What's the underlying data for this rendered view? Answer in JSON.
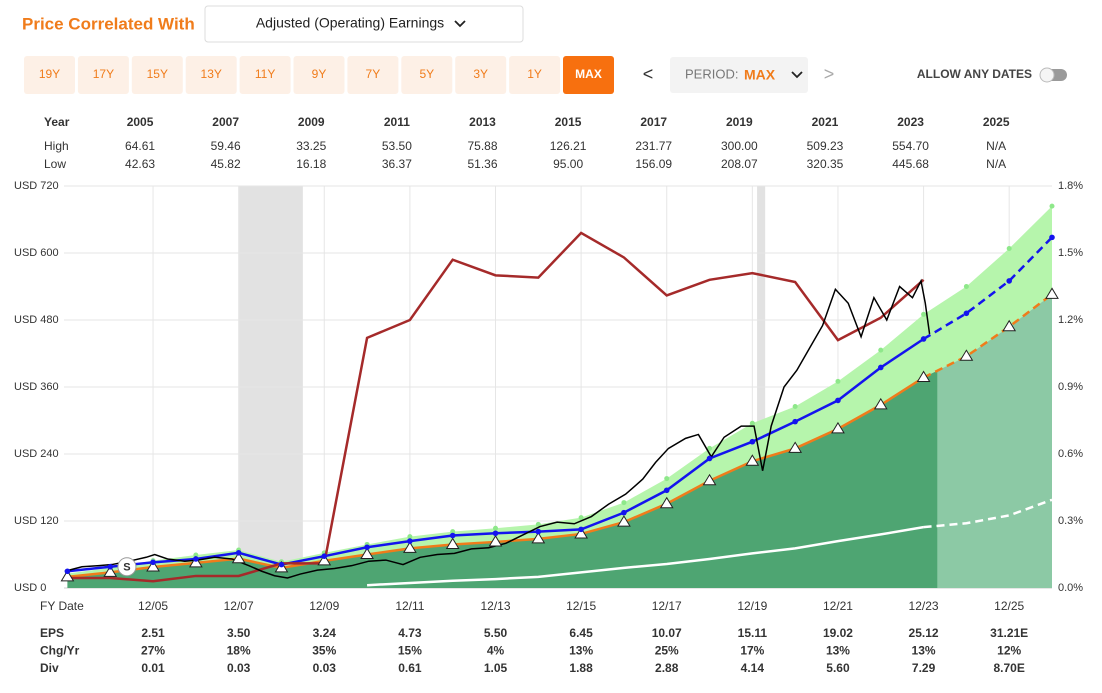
{
  "controls": {
    "title": "Price Correlated With",
    "dropdown": "Adjusted (Operating) Earnings",
    "periods": [
      "19Y",
      "17Y",
      "15Y",
      "13Y",
      "11Y",
      "9Y",
      "7Y",
      "5Y",
      "3Y",
      "1Y",
      "MAX"
    ],
    "active_period": 10,
    "prev": "<",
    "next": ">",
    "period_label": "PERIOD:",
    "period_value": "MAX",
    "allow_any_dates": "ALLOW ANY DATES"
  },
  "year_table": {
    "row_labels": [
      "Year",
      "High",
      "Low"
    ],
    "years": [
      "2005",
      "2007",
      "2009",
      "2011",
      "2013",
      "2015",
      "2017",
      "2019",
      "2021",
      "2023",
      "2025"
    ],
    "high": [
      "64.61",
      "59.46",
      "33.25",
      "53.50",
      "75.88",
      "126.21",
      "231.77",
      "300.00",
      "509.23",
      "554.70",
      "N/A"
    ],
    "low": [
      "42.63",
      "45.82",
      "16.18",
      "36.37",
      "51.36",
      "95.00",
      "156.09",
      "208.07",
      "320.35",
      "445.68",
      "N/A"
    ]
  },
  "chart_data": {
    "type": "line",
    "x": [
      2003.96,
      2004.96,
      2005.96,
      2006.96,
      2007.96,
      2008.96,
      2009.96,
      2010.96,
      2011.96,
      2012.96,
      2013.96,
      2014.96,
      2015.96,
      2016.96,
      2017.96,
      2018.96,
      2019.96,
      2020.96,
      2021.96,
      2022.96,
      2023.96,
      2024.96,
      2025.96,
      2026.96
    ],
    "xlim": [
      2003.88,
      2026.96
    ],
    "xticks": [
      {
        "value": 2005.96,
        "label": "12/05"
      },
      {
        "value": 2007.96,
        "label": "12/07"
      },
      {
        "value": 2009.96,
        "label": "12/09"
      },
      {
        "value": 2011.96,
        "label": "12/11"
      },
      {
        "value": 2013.96,
        "label": "12/13"
      },
      {
        "value": 2015.96,
        "label": "12/15"
      },
      {
        "value": 2017.96,
        "label": "12/17"
      },
      {
        "value": 2019.96,
        "label": "12/19"
      },
      {
        "value": 2021.96,
        "label": "12/21"
      },
      {
        "value": 2023.96,
        "label": "12/23"
      },
      {
        "value": 2025.96,
        "label": "12/25"
      }
    ],
    "xlabel": "FY Date",
    "ylim": [
      0,
      720
    ],
    "yticks": [
      {
        "value": 0,
        "label": "USD 0"
      },
      {
        "value": 120,
        "label": "USD 120"
      },
      {
        "value": 240,
        "label": "USD 240"
      },
      {
        "value": 360,
        "label": "USD 360"
      },
      {
        "value": 480,
        "label": "USD 480"
      },
      {
        "value": 600,
        "label": "USD 600"
      },
      {
        "value": 720,
        "label": "USD 720"
      }
    ],
    "y2lim": [
      0,
      1.8
    ],
    "y2ticks": [
      {
        "value": 0,
        "label": "0.0%"
      },
      {
        "value": 0.3,
        "label": "0.3%"
      },
      {
        "value": 0.6,
        "label": "0.6%"
      },
      {
        "value": 0.9,
        "label": "0.9%"
      },
      {
        "value": 1.2,
        "label": "1.2%"
      },
      {
        "value": 1.5,
        "label": "1.5%"
      },
      {
        "value": 1.8,
        "label": "1.8%"
      }
    ],
    "grid": true,
    "dashed_after": 2023.96,
    "dark_area_until": 2024.28,
    "dark_area_color": "#4ea572",
    "future_area_color": "#8cc9a5",
    "band": {
      "color": "#b6f5ac",
      "dot_color": "#8ee88a",
      "values": [
        26,
        36,
        49,
        59,
        68,
        47,
        63,
        78,
        92,
        101,
        107,
        114,
        126,
        153,
        196,
        250,
        295,
        325,
        370,
        426,
        490,
        540,
        608,
        684
      ]
    },
    "series": [
      {
        "color": "#f07c1b",
        "marker": "triangle",
        "dashed_forecast": true,
        "values": [
          20,
          28,
          37.7,
          45,
          52.5,
          36,
          48.6,
          60,
          71,
          78,
          82.5,
          88,
          96.8,
          118,
          151,
          192,
          227,
          250,
          285,
          328,
          377,
          415,
          468,
          526
        ]
      },
      {
        "color": "#1414ee",
        "marker": "dot",
        "dashed_forecast": true,
        "values": [
          30,
          38,
          46,
          52,
          63,
          42,
          57,
          73,
          84,
          94,
          98,
          101,
          105,
          135,
          175,
          232,
          262,
          298,
          336,
          395,
          446,
          492,
          550,
          628
        ]
      },
      {
        "color": "#ffffff",
        "dashed_forecast": true,
        "values": [
          null,
          null,
          null,
          null,
          null,
          null,
          null,
          5,
          9,
          13,
          16,
          20,
          28,
          36,
          43,
          52,
          62,
          71,
          84,
          96,
          109,
          116,
          130,
          158
        ]
      },
      {
        "color": "#a52a2a",
        "axis": "y2",
        "values": [
          0.045,
          0.045,
          0.03,
          0.054,
          0.054,
          0.11,
          0.11,
          1.12,
          1.2,
          1.47,
          1.4,
          1.39,
          1.59,
          1.48,
          1.31,
          1.38,
          1.41,
          1.37,
          1.11,
          1.21,
          1.38,
          null,
          null,
          null
        ]
      }
    ],
    "price": {
      "color": "#000000",
      "x": [
        2003.9,
        2004.3,
        2004.7,
        2005.0,
        2005.4,
        2005.8,
        2006.0,
        2006.3,
        2006.7,
        2007.0,
        2007.4,
        2007.8,
        2008.2,
        2008.5,
        2008.8,
        2009.1,
        2009.4,
        2009.8,
        2010.2,
        2010.6,
        2011.0,
        2011.4,
        2011.8,
        2012.2,
        2012.6,
        2013.0,
        2013.4,
        2013.8,
        2014.2,
        2014.6,
        2015.0,
        2015.4,
        2015.8,
        2016.2,
        2016.6,
        2017.0,
        2017.4,
        2017.7,
        2018.0,
        2018.4,
        2018.7,
        2019.0,
        2019.3,
        2019.7,
        2020.0,
        2020.2,
        2020.4,
        2020.7,
        2021.0,
        2021.3,
        2021.6,
        2021.9,
        2022.2,
        2022.5,
        2022.8,
        2023.1,
        2023.4,
        2023.7,
        2023.9,
        2024.0,
        2024.1
      ],
      "values": [
        30,
        38,
        40,
        42,
        48,
        55,
        60,
        52,
        48,
        50,
        55,
        52,
        40,
        30,
        22,
        18,
        25,
        32,
        35,
        40,
        48,
        50,
        42,
        55,
        60,
        62,
        70,
        72,
        80,
        95,
        110,
        118,
        115,
        128,
        150,
        168,
        195,
        225,
        250,
        268,
        275,
        235,
        270,
        290,
        290,
        210,
        290,
        360,
        390,
        430,
        470,
        535,
        510,
        450,
        520,
        480,
        540,
        520,
        550,
        510,
        455
      ]
    },
    "shaded_periods": [
      [
        2007.97,
        2009.46
      ],
      [
        2020.07,
        2020.26
      ]
    ],
    "shade_color": "#e2e2e2",
    "annotations": [
      {
        "label": "S",
        "x": 2005.35,
        "y": 38
      }
    ]
  },
  "fy_table": {
    "rows": [
      {
        "label": "EPS",
        "values": [
          "2.51",
          "3.50",
          "3.24",
          "4.73",
          "5.50",
          "6.45",
          "10.07",
          "15.11",
          "19.02",
          "25.12",
          "31.21E"
        ]
      },
      {
        "label": "Chg/Yr",
        "values": [
          "27%",
          "18%",
          "35%",
          "15%",
          "4%",
          "13%",
          "25%",
          "17%",
          "13%",
          "13%",
          "12%"
        ]
      },
      {
        "label": "Div",
        "values": [
          "0.01",
          "0.03",
          "0.03",
          "0.61",
          "1.05",
          "1.88",
          "2.88",
          "4.14",
          "5.60",
          "7.29",
          "8.70E"
        ]
      }
    ]
  }
}
